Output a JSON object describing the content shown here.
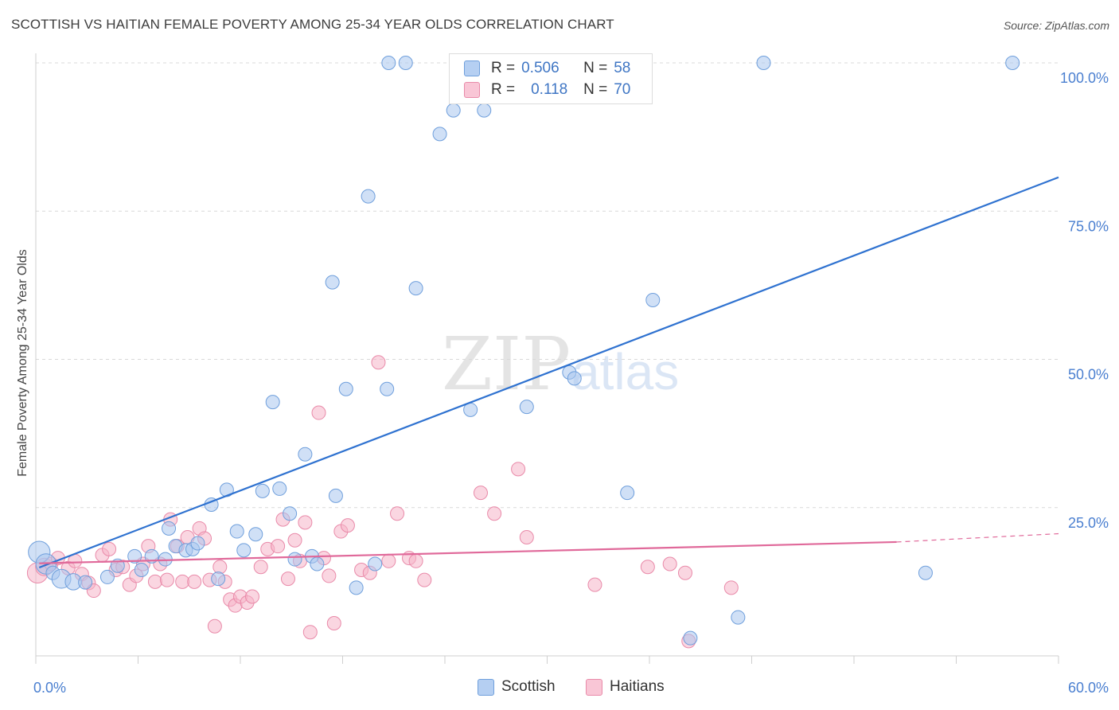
{
  "header": {
    "title": "SCOTTISH VS HAITIAN FEMALE POVERTY AMONG 25-34 YEAR OLDS CORRELATION CHART",
    "source": "Source: ZipAtlas.com"
  },
  "watermark": {
    "zip": "ZIP",
    "atlas": "atlas"
  },
  "legend": {
    "rows": [
      {
        "r_label": "R =",
        "r_value": "0.506",
        "n_label": "N =",
        "n_value": "58"
      },
      {
        "r_label": "R =",
        "r_value": "0.118",
        "n_label": "N =",
        "n_value": "70"
      }
    ]
  },
  "bottom_legend": {
    "scottish": "Scottish",
    "haitians": "Haitians"
  },
  "colors": {
    "scottish_fill": "#a9c6ee",
    "scottish_stroke": "#6f9fdc",
    "scottish_line": "#2f72d0",
    "haitian_fill": "#f6b4c8",
    "haitian_stroke": "#e98aa9",
    "haitian_line": "#e0699a",
    "tick_label": "#4a7fd0",
    "grid": "#d9d9d9"
  },
  "chart_data": {
    "type": "scatter",
    "title": "SCOTTISH VS HAITIAN FEMALE POVERTY AMONG 25-34 YEAR OLDS CORRELATION CHART",
    "xlabel": "",
    "ylabel": "Female Poverty Among 25-34 Year Olds",
    "xlim": [
      0,
      60
    ],
    "ylim": [
      0,
      100
    ],
    "x_tick_labels": [
      "0.0%",
      "60.0%"
    ],
    "y_tick_labels": [
      "100.0%",
      "75.0%",
      "50.0%",
      "25.0%"
    ],
    "y_ticks": [
      100,
      75,
      50,
      25
    ],
    "legend_position": "top-center",
    "grid": true,
    "series": [
      {
        "name": "Scottish",
        "r": 0.506,
        "n": 58,
        "trend": {
          "x": [
            0.2,
            60
          ],
          "y": [
            14.9,
            80.7
          ]
        },
        "points": [
          {
            "x": 0.2,
            "y": 17.5,
            "s": 1.6
          },
          {
            "x": 0.6,
            "y": 15.5,
            "s": 1.5
          },
          {
            "x": 1.0,
            "y": 14.0,
            "s": 1.0
          },
          {
            "x": 1.5,
            "y": 13.0,
            "s": 1.4
          },
          {
            "x": 2.2,
            "y": 12.5,
            "s": 1.2
          },
          {
            "x": 2.9,
            "y": 12.4,
            "s": 1.0
          },
          {
            "x": 4.2,
            "y": 13.3,
            "s": 1.0
          },
          {
            "x": 4.8,
            "y": 15.2,
            "s": 1.0
          },
          {
            "x": 5.8,
            "y": 16.8,
            "s": 1.0
          },
          {
            "x": 6.2,
            "y": 14.5,
            "s": 1.0
          },
          {
            "x": 6.8,
            "y": 16.8,
            "s": 1.0
          },
          {
            "x": 7.6,
            "y": 16.3,
            "s": 1.0
          },
          {
            "x": 7.8,
            "y": 21.5,
            "s": 1.0
          },
          {
            "x": 8.2,
            "y": 18.5,
            "s": 1.0
          },
          {
            "x": 8.8,
            "y": 17.8,
            "s": 1.0
          },
          {
            "x": 9.2,
            "y": 18.0,
            "s": 1.0
          },
          {
            "x": 9.5,
            "y": 19.0,
            "s": 1.0
          },
          {
            "x": 10.3,
            "y": 25.5,
            "s": 1.0
          },
          {
            "x": 10.7,
            "y": 13.0,
            "s": 1.0
          },
          {
            "x": 11.2,
            "y": 28.0,
            "s": 1.0
          },
          {
            "x": 11.8,
            "y": 21.0,
            "s": 1.0
          },
          {
            "x": 12.2,
            "y": 17.8,
            "s": 1.0
          },
          {
            "x": 12.9,
            "y": 20.5,
            "s": 1.0
          },
          {
            "x": 13.3,
            "y": 27.8,
            "s": 1.0
          },
          {
            "x": 13.9,
            "y": 42.8,
            "s": 1.0
          },
          {
            "x": 14.3,
            "y": 28.2,
            "s": 1.0
          },
          {
            "x": 14.9,
            "y": 24.0,
            "s": 1.0
          },
          {
            "x": 15.2,
            "y": 16.3,
            "s": 1.0
          },
          {
            "x": 15.8,
            "y": 34.0,
            "s": 1.0
          },
          {
            "x": 16.2,
            "y": 16.8,
            "s": 1.0
          },
          {
            "x": 16.5,
            "y": 15.5,
            "s": 1.0
          },
          {
            "x": 17.4,
            "y": 63.0,
            "s": 1.0
          },
          {
            "x": 17.6,
            "y": 27.0,
            "s": 1.0
          },
          {
            "x": 18.2,
            "y": 45.0,
            "s": 1.0
          },
          {
            "x": 18.8,
            "y": 11.5,
            "s": 1.0
          },
          {
            "x": 19.5,
            "y": 77.5,
            "s": 1.0
          },
          {
            "x": 19.9,
            "y": 15.5,
            "s": 1.0
          },
          {
            "x": 20.6,
            "y": 45.0,
            "s": 1.0
          },
          {
            "x": 20.7,
            "y": 100.0,
            "s": 1.0
          },
          {
            "x": 21.7,
            "y": 100.0,
            "s": 1.0
          },
          {
            "x": 22.3,
            "y": 62.0,
            "s": 1.0
          },
          {
            "x": 23.7,
            "y": 88.0,
            "s": 1.0
          },
          {
            "x": 24.5,
            "y": 92.0,
            "s": 1.0
          },
          {
            "x": 25.5,
            "y": 41.5,
            "s": 1.0
          },
          {
            "x": 26.3,
            "y": 92.0,
            "s": 1.0
          },
          {
            "x": 28.8,
            "y": 42.0,
            "s": 1.0
          },
          {
            "x": 31.3,
            "y": 47.8,
            "s": 1.0
          },
          {
            "x": 31.6,
            "y": 46.8,
            "s": 1.0
          },
          {
            "x": 34.7,
            "y": 27.5,
            "s": 1.0
          },
          {
            "x": 36.2,
            "y": 60.0,
            "s": 1.0
          },
          {
            "x": 38.4,
            "y": 3.0,
            "s": 1.0
          },
          {
            "x": 41.2,
            "y": 6.5,
            "s": 1.0
          },
          {
            "x": 42.7,
            "y": 100.0,
            "s": 1.0
          },
          {
            "x": 52.2,
            "y": 14.0,
            "s": 1.0
          },
          {
            "x": 57.3,
            "y": 100.0,
            "s": 1.0
          }
        ]
      },
      {
        "name": "Haitians",
        "r": 0.118,
        "n": 70,
        "trend": {
          "x": [
            0.2,
            50.5
          ],
          "y": [
            15.6,
            19.2
          ],
          "dash_to": [
            60,
            20.6
          ]
        },
        "points": [
          {
            "x": 0.1,
            "y": 14.0,
            "s": 1.5
          },
          {
            "x": 0.5,
            "y": 15.0,
            "s": 1.3
          },
          {
            "x": 0.9,
            "y": 15.5,
            "s": 1.0
          },
          {
            "x": 1.3,
            "y": 16.5,
            "s": 1.0
          },
          {
            "x": 1.9,
            "y": 14.8,
            "s": 1.0
          },
          {
            "x": 2.3,
            "y": 16.0,
            "s": 1.0
          },
          {
            "x": 2.7,
            "y": 13.8,
            "s": 1.0
          },
          {
            "x": 3.1,
            "y": 12.3,
            "s": 1.0
          },
          {
            "x": 3.4,
            "y": 11.0,
            "s": 1.0
          },
          {
            "x": 3.9,
            "y": 17.0,
            "s": 1.0
          },
          {
            "x": 4.3,
            "y": 18.0,
            "s": 1.0
          },
          {
            "x": 4.7,
            "y": 14.5,
            "s": 1.0
          },
          {
            "x": 5.1,
            "y": 15.0,
            "s": 1.0
          },
          {
            "x": 5.5,
            "y": 12.0,
            "s": 1.0
          },
          {
            "x": 5.9,
            "y": 13.5,
            "s": 1.0
          },
          {
            "x": 6.3,
            "y": 15.5,
            "s": 1.0
          },
          {
            "x": 6.6,
            "y": 18.5,
            "s": 1.0
          },
          {
            "x": 7.0,
            "y": 12.5,
            "s": 1.0
          },
          {
            "x": 7.3,
            "y": 15.5,
            "s": 1.0
          },
          {
            "x": 7.7,
            "y": 12.8,
            "s": 1.0
          },
          {
            "x": 7.9,
            "y": 23.0,
            "s": 1.0
          },
          {
            "x": 8.3,
            "y": 18.5,
            "s": 1.0
          },
          {
            "x": 8.6,
            "y": 12.5,
            "s": 1.0
          },
          {
            "x": 8.9,
            "y": 20.0,
            "s": 1.0
          },
          {
            "x": 9.3,
            "y": 12.5,
            "s": 1.0
          },
          {
            "x": 9.6,
            "y": 21.5,
            "s": 1.0
          },
          {
            "x": 9.9,
            "y": 19.8,
            "s": 1.0
          },
          {
            "x": 10.2,
            "y": 12.8,
            "s": 1.0
          },
          {
            "x": 10.5,
            "y": 5.0,
            "s": 1.0
          },
          {
            "x": 10.8,
            "y": 15.0,
            "s": 1.0
          },
          {
            "x": 11.1,
            "y": 12.5,
            "s": 1.0
          },
          {
            "x": 11.4,
            "y": 9.5,
            "s": 1.0
          },
          {
            "x": 11.7,
            "y": 8.5,
            "s": 1.0
          },
          {
            "x": 12.0,
            "y": 10.0,
            "s": 1.0
          },
          {
            "x": 12.4,
            "y": 9.0,
            "s": 1.0
          },
          {
            "x": 12.7,
            "y": 10.0,
            "s": 1.0
          },
          {
            "x": 13.2,
            "y": 15.0,
            "s": 1.0
          },
          {
            "x": 13.6,
            "y": 18.0,
            "s": 1.0
          },
          {
            "x": 14.2,
            "y": 18.5,
            "s": 1.0
          },
          {
            "x": 14.5,
            "y": 23.0,
            "s": 1.0
          },
          {
            "x": 14.8,
            "y": 13.0,
            "s": 1.0
          },
          {
            "x": 15.2,
            "y": 19.5,
            "s": 1.0
          },
          {
            "x": 15.5,
            "y": 16.0,
            "s": 1.0
          },
          {
            "x": 15.8,
            "y": 22.5,
            "s": 1.0
          },
          {
            "x": 16.1,
            "y": 4.0,
            "s": 1.0
          },
          {
            "x": 16.6,
            "y": 41.0,
            "s": 1.0
          },
          {
            "x": 16.9,
            "y": 16.5,
            "s": 1.0
          },
          {
            "x": 17.2,
            "y": 13.5,
            "s": 1.0
          },
          {
            "x": 17.5,
            "y": 5.5,
            "s": 1.0
          },
          {
            "x": 17.9,
            "y": 21.0,
            "s": 1.0
          },
          {
            "x": 18.3,
            "y": 22.0,
            "s": 1.0
          },
          {
            "x": 19.1,
            "y": 14.5,
            "s": 1.0
          },
          {
            "x": 19.6,
            "y": 14.0,
            "s": 1.0
          },
          {
            "x": 20.1,
            "y": 49.5,
            "s": 1.0
          },
          {
            "x": 20.7,
            "y": 16.0,
            "s": 1.0
          },
          {
            "x": 21.2,
            "y": 24.0,
            "s": 1.0
          },
          {
            "x": 21.9,
            "y": 16.5,
            "s": 1.0
          },
          {
            "x": 22.3,
            "y": 16.0,
            "s": 1.0
          },
          {
            "x": 22.8,
            "y": 12.8,
            "s": 1.0
          },
          {
            "x": 26.1,
            "y": 27.5,
            "s": 1.0
          },
          {
            "x": 26.9,
            "y": 24.0,
            "s": 1.0
          },
          {
            "x": 28.3,
            "y": 31.5,
            "s": 1.0
          },
          {
            "x": 28.8,
            "y": 20.0,
            "s": 1.0
          },
          {
            "x": 32.8,
            "y": 12.0,
            "s": 1.0
          },
          {
            "x": 35.9,
            "y": 15.0,
            "s": 1.0
          },
          {
            "x": 37.2,
            "y": 15.5,
            "s": 1.0
          },
          {
            "x": 38.1,
            "y": 14.0,
            "s": 1.0
          },
          {
            "x": 38.3,
            "y": 2.5,
            "s": 1.0
          },
          {
            "x": 40.8,
            "y": 11.5,
            "s": 1.0
          }
        ]
      }
    ]
  }
}
